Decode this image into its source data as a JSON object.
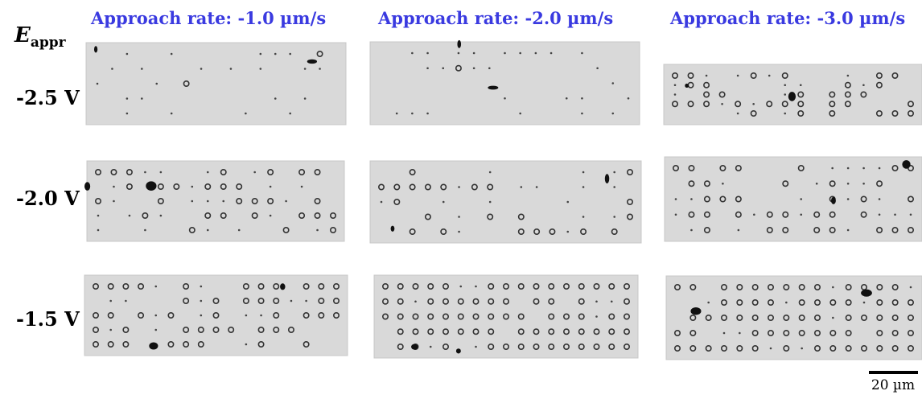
{
  "header": {
    "symbol": "E",
    "subscript": "appr",
    "columns": [
      "Approach rate: -1.0 µm/s",
      "Approach rate: -2.0 µm/s",
      "Approach rate: -3.0 µm/s"
    ]
  },
  "rows": [
    "-2.5 V",
    "-2.0 V",
    "-1.5 V"
  ],
  "scale_bar": "20 µm"
}
